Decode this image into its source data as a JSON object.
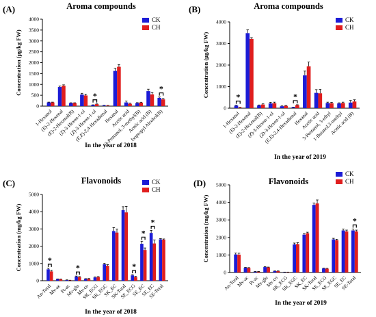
{
  "colors": {
    "CK": "#1c1cd6",
    "CH": "#e01e1e",
    "axis": "#000000"
  },
  "panels": [
    {
      "letter": "(A)",
      "title": "Aroma compounds",
      "ylabel": "Concentration (μg/kg FW)",
      "xlabel": "In the year of 2018",
      "legend": "top-right"
    },
    {
      "letter": "(B)",
      "title": "Aroma compounds",
      "ylabel": "Concentration (μg/kg FW)",
      "xlabel": "In the year of 2019",
      "legend": "top-right"
    },
    {
      "letter": "(C)",
      "title": "Flavonoids",
      "ylabel": "Concentration (mg/kg FW)",
      "xlabel": "In the year of 2018",
      "legend": "top-right"
    },
    {
      "letter": "(D)",
      "title": "Flavonoids",
      "ylabel": "Concentration (mg/kg FW)",
      "xlabel": "In the year of 2019",
      "legend": "top-right"
    }
  ],
  "chart_data": [
    {
      "type": "bar",
      "title": "Aroma compounds",
      "xlabel": "In the year of 2018",
      "ylabel": "Concentration (μg/kg FW)",
      "ylim": [
        0,
        4000
      ],
      "yticks": [
        0,
        500,
        1000,
        1500,
        2000,
        2500,
        3000,
        3500,
        4000
      ],
      "categories": [
        "1-Hexanol",
        "(E)-2-Hexenal",
        "(E)-2-Hexenal(B)",
        "(Z)-3-Hexen-1-ol",
        "(Z)-3-Hexen-1-ol",
        "(E,E)-2,4-Hexadienal",
        "Hexanal",
        "Acetic acid",
        "3-Pentanol, 3-methyl(B)",
        "Acetic acid (B)",
        "Isopropyl Alcohol(B)"
      ],
      "series": [
        {
          "name": "CK",
          "values": [
            170,
            880,
            140,
            530,
            50,
            30,
            1620,
            170,
            140,
            690,
            380
          ],
          "errors": [
            15,
            40,
            15,
            60,
            10,
            8,
            120,
            60,
            20,
            90,
            40
          ]
        },
        {
          "name": "CH",
          "values": [
            170,
            940,
            140,
            490,
            90,
            25,
            1810,
            110,
            160,
            540,
            310
          ],
          "errors": [
            15,
            40,
            15,
            60,
            12,
            8,
            100,
            30,
            20,
            80,
            40
          ]
        }
      ],
      "significance": [
        "",
        "",
        "",
        "",
        "*",
        "",
        "",
        "",
        "",
        "",
        "*"
      ]
    },
    {
      "type": "bar",
      "title": "Aroma compounds",
      "xlabel": "In the year of 2019",
      "ylabel": "Concentration (μg/kg FW)",
      "ylim": [
        0,
        4000
      ],
      "yticks": [
        0,
        1000,
        2000,
        3000,
        4000
      ],
      "categories": [
        "1-Hexanol",
        "(E)-2-Hexenal",
        "(E)-2-Hexenal(B)",
        "(Z)-3-Hexen-1-ol",
        "(Z)-3-Hexen-1-ol",
        "(E,E)-2,4-Hexadienal",
        "Hexanal",
        "Acetic acid",
        "3-Pentanol, 3-ethyl",
        "1-Butanol,3-methyl",
        "Acetic acid (B)"
      ],
      "series": [
        {
          "name": "CK",
          "values": [
            120,
            3480,
            130,
            220,
            90,
            40,
            1520,
            710,
            240,
            220,
            260
          ],
          "errors": [
            20,
            150,
            20,
            50,
            15,
            10,
            200,
            150,
            40,
            30,
            100
          ]
        },
        {
          "name": "CH",
          "values": [
            30,
            3210,
            170,
            230,
            110,
            140,
            1940,
            690,
            230,
            240,
            310
          ],
          "errors": [
            10,
            60,
            30,
            50,
            15,
            20,
            200,
            180,
            40,
            40,
            80
          ]
        }
      ],
      "significance": [
        "*",
        "",
        "",
        "",
        "",
        "*",
        "",
        "",
        "",
        "",
        ""
      ]
    },
    {
      "type": "bar",
      "title": "Flavonoids",
      "xlabel": "In the year of 2018",
      "ylabel": "Concentration (mg/kg FW)",
      "ylim": [
        0,
        5000
      ],
      "yticks": [
        0,
        1000,
        2000,
        3000,
        4000,
        5000
      ],
      "categories": [
        "An-Total",
        "Mv-ac",
        "Pt-ac",
        "Mv-glu",
        "Mv-co",
        "SK_ECG",
        "SK_EGC",
        "SK_EC",
        "SK-Total",
        "SE_ECG",
        "SE_EC",
        "SE_EC",
        "SE-Total"
      ],
      "series": [
        {
          "name": "CK",
          "values": [
            660,
            90,
            40,
            240,
            100,
            190,
            950,
            2880,
            4090,
            310,
            2140,
            2770,
            2400
          ],
          "errors": [
            60,
            15,
            10,
            30,
            20,
            30,
            60,
            200,
            200,
            40,
            150,
            150,
            40
          ]
        },
        {
          "name": "CH",
          "values": [
            540,
            80,
            20,
            210,
            110,
            210,
            870,
            2790,
            3960,
            210,
            1780,
            2160,
            2380
          ],
          "errors": [
            60,
            15,
            10,
            30,
            20,
            30,
            60,
            200,
            350,
            40,
            120,
            200,
            40
          ]
        }
      ],
      "significance": [
        "*",
        "",
        "",
        "*",
        "",
        "",
        "",
        "",
        "",
        "*",
        "*",
        "*",
        ""
      ]
    },
    {
      "type": "bar",
      "title": "Flavonoids",
      "xlabel": "In the year of 2019",
      "ylabel": "Concentration (mg/kg FW)",
      "ylim": [
        0,
        5000
      ],
      "yticks": [
        0,
        1000,
        2000,
        3000,
        4000,
        5000
      ],
      "categories": [
        "An-Total",
        "Mv-ac",
        "Pt-ac",
        "Mv-glu",
        "Mv-co",
        "SK_ECG",
        "SK_EGC",
        "SK_EC",
        "SK-Total",
        "SE_ECG",
        "SE_EGC",
        "SE_EC",
        "SE-Total"
      ],
      "series": [
        {
          "name": "CK",
          "values": [
            1030,
            270,
            50,
            310,
            80,
            20,
            1600,
            2160,
            3860,
            230,
            1890,
            2400,
            2400
          ],
          "errors": [
            80,
            20,
            10,
            20,
            10,
            5,
            80,
            60,
            100,
            20,
            60,
            80,
            80
          ]
        },
        {
          "name": "CH",
          "values": [
            1020,
            260,
            50,
            290,
            80,
            20,
            1620,
            2240,
            3940,
            220,
            1840,
            2340,
            2340
          ],
          "errors": [
            80,
            20,
            10,
            20,
            10,
            5,
            80,
            60,
            200,
            20,
            60,
            80,
            80
          ]
        }
      ],
      "significance": [
        "",
        "",
        "",
        "",
        "",
        "",
        "",
        "",
        "",
        "",
        "",
        "",
        "*"
      ]
    }
  ]
}
